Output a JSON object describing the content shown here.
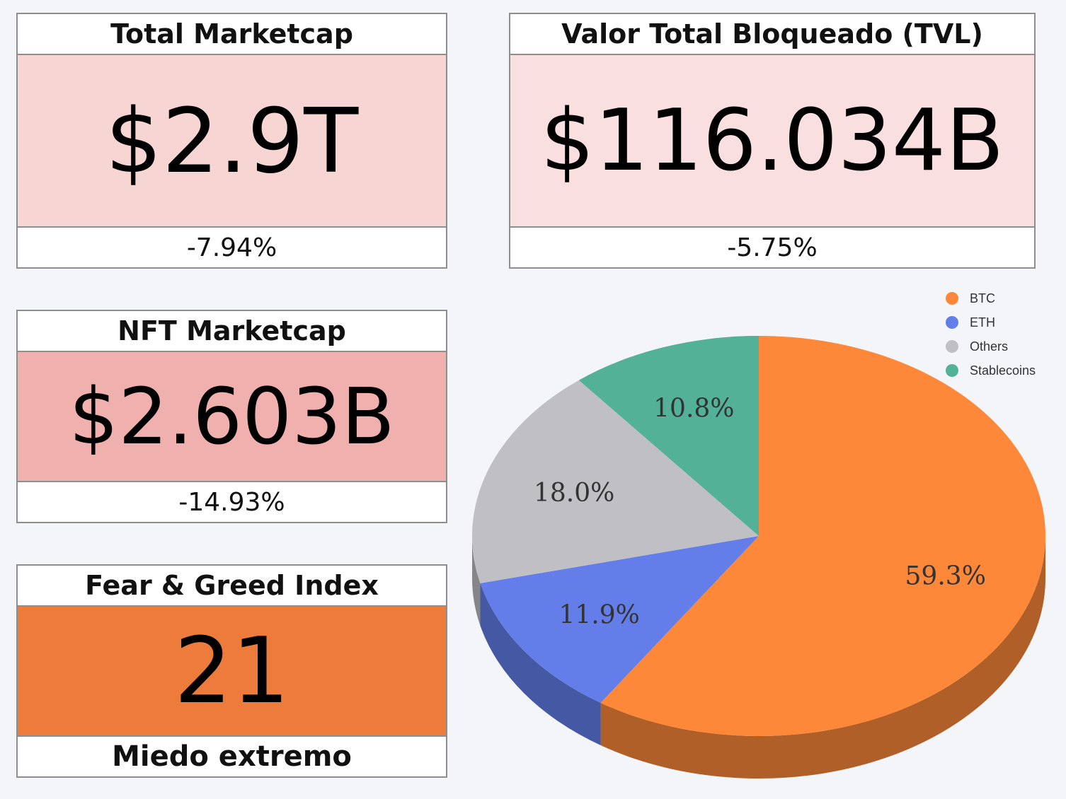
{
  "cards": {
    "total_marketcap": {
      "title": "Total Marketcap",
      "value": "$2.9T",
      "change": "-7.94%",
      "value_bg": "#f7d5d3"
    },
    "tvl": {
      "title": "Valor Total Bloqueado (TVL)",
      "value": "$116.034B",
      "change": "-5.75%",
      "value_bg": "#f9dfdf"
    },
    "nft_marketcap": {
      "title": "NFT Marketcap",
      "value": "$2.603B",
      "change": "-14.93%",
      "value_bg": "#f0b1ae"
    },
    "fear_greed": {
      "title": "Fear & Greed Index",
      "value": "21",
      "label": "Miedo extremo",
      "value_bg": "#ec7b3c"
    }
  },
  "chart_data": {
    "type": "pie",
    "labels": [
      "BTC",
      "ETH",
      "Others",
      "Stablecoins"
    ],
    "values": [
      59.3,
      11.9,
      18.0,
      10.8
    ],
    "value_labels": [
      "59.3%",
      "11.9%",
      "18.0%",
      "10.8%"
    ],
    "colors": [
      "#fd8839",
      "#637ee9",
      "#c0bfc4",
      "#52b196"
    ],
    "legend_position": "top-right",
    "style": "3d"
  }
}
